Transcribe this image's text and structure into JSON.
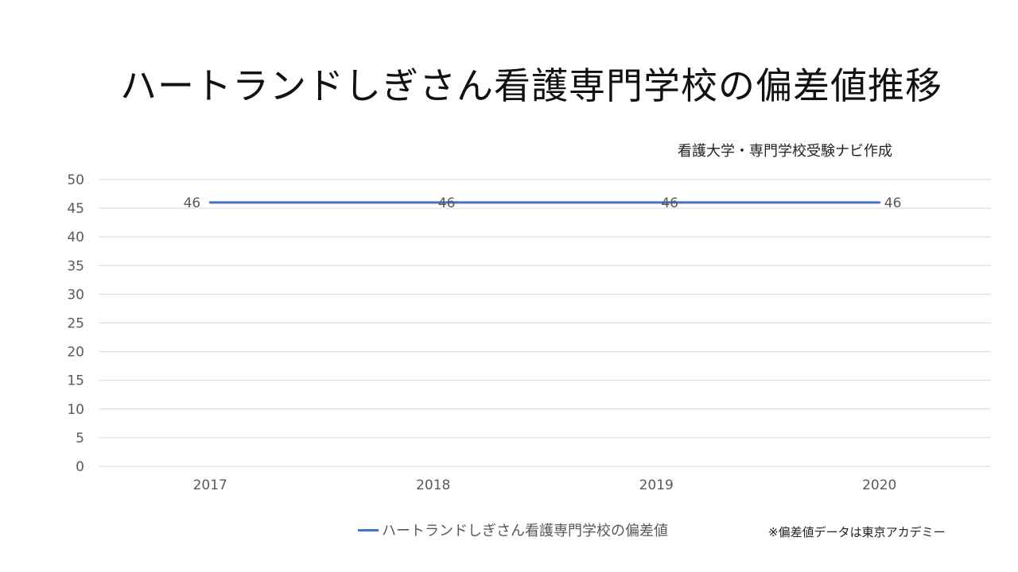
{
  "chart_data": {
    "type": "line",
    "title": "ハートランドしぎさん看護専門学校の偏差値推移",
    "subtitle": "看護大学・専門学校受験ナビ作成",
    "categories": [
      "2017",
      "2018",
      "2019",
      "2020"
    ],
    "series": [
      {
        "name": "ハートランドしぎさん看護専門学校の偏差値",
        "values": [
          46,
          46,
          46,
          46
        ],
        "color": "#4472c4"
      }
    ],
    "data_labels": [
      "46",
      "46",
      "46",
      "46"
    ],
    "ylim": [
      0,
      50
    ],
    "yticks": [
      "0",
      "5",
      "10",
      "15",
      "20",
      "25",
      "30",
      "35",
      "40",
      "45",
      "50"
    ],
    "grid": true,
    "legend_position": "bottom",
    "note": "※偏差値データは東京アカデミー"
  }
}
